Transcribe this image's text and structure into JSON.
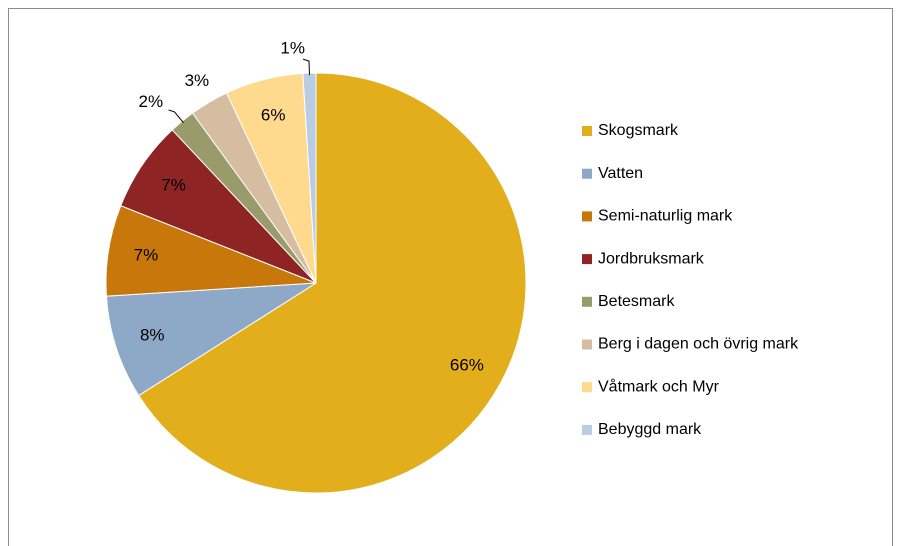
{
  "chart_data": {
    "type": "pie",
    "categories": [
      "Skogsmark",
      "Vatten",
      "Semi-naturlig mark",
      "Jordbruksmark",
      "Betesmark",
      "Berg i dagen och övrig mark",
      "Våtmark och Myr",
      "Bebyggd mark"
    ],
    "values": [
      66,
      8,
      7,
      7,
      2,
      3,
      6,
      1
    ],
    "value_labels": [
      "66%",
      "8%",
      "7%",
      "7%",
      "2%",
      "3%",
      "6%",
      "1%"
    ],
    "colors": [
      "#e2ae1b",
      "#8ea9c8",
      "#c8780a",
      "#8e2424",
      "#9a9b6b",
      "#d6bca1",
      "#ffd98e",
      "#b8cce4"
    ]
  }
}
